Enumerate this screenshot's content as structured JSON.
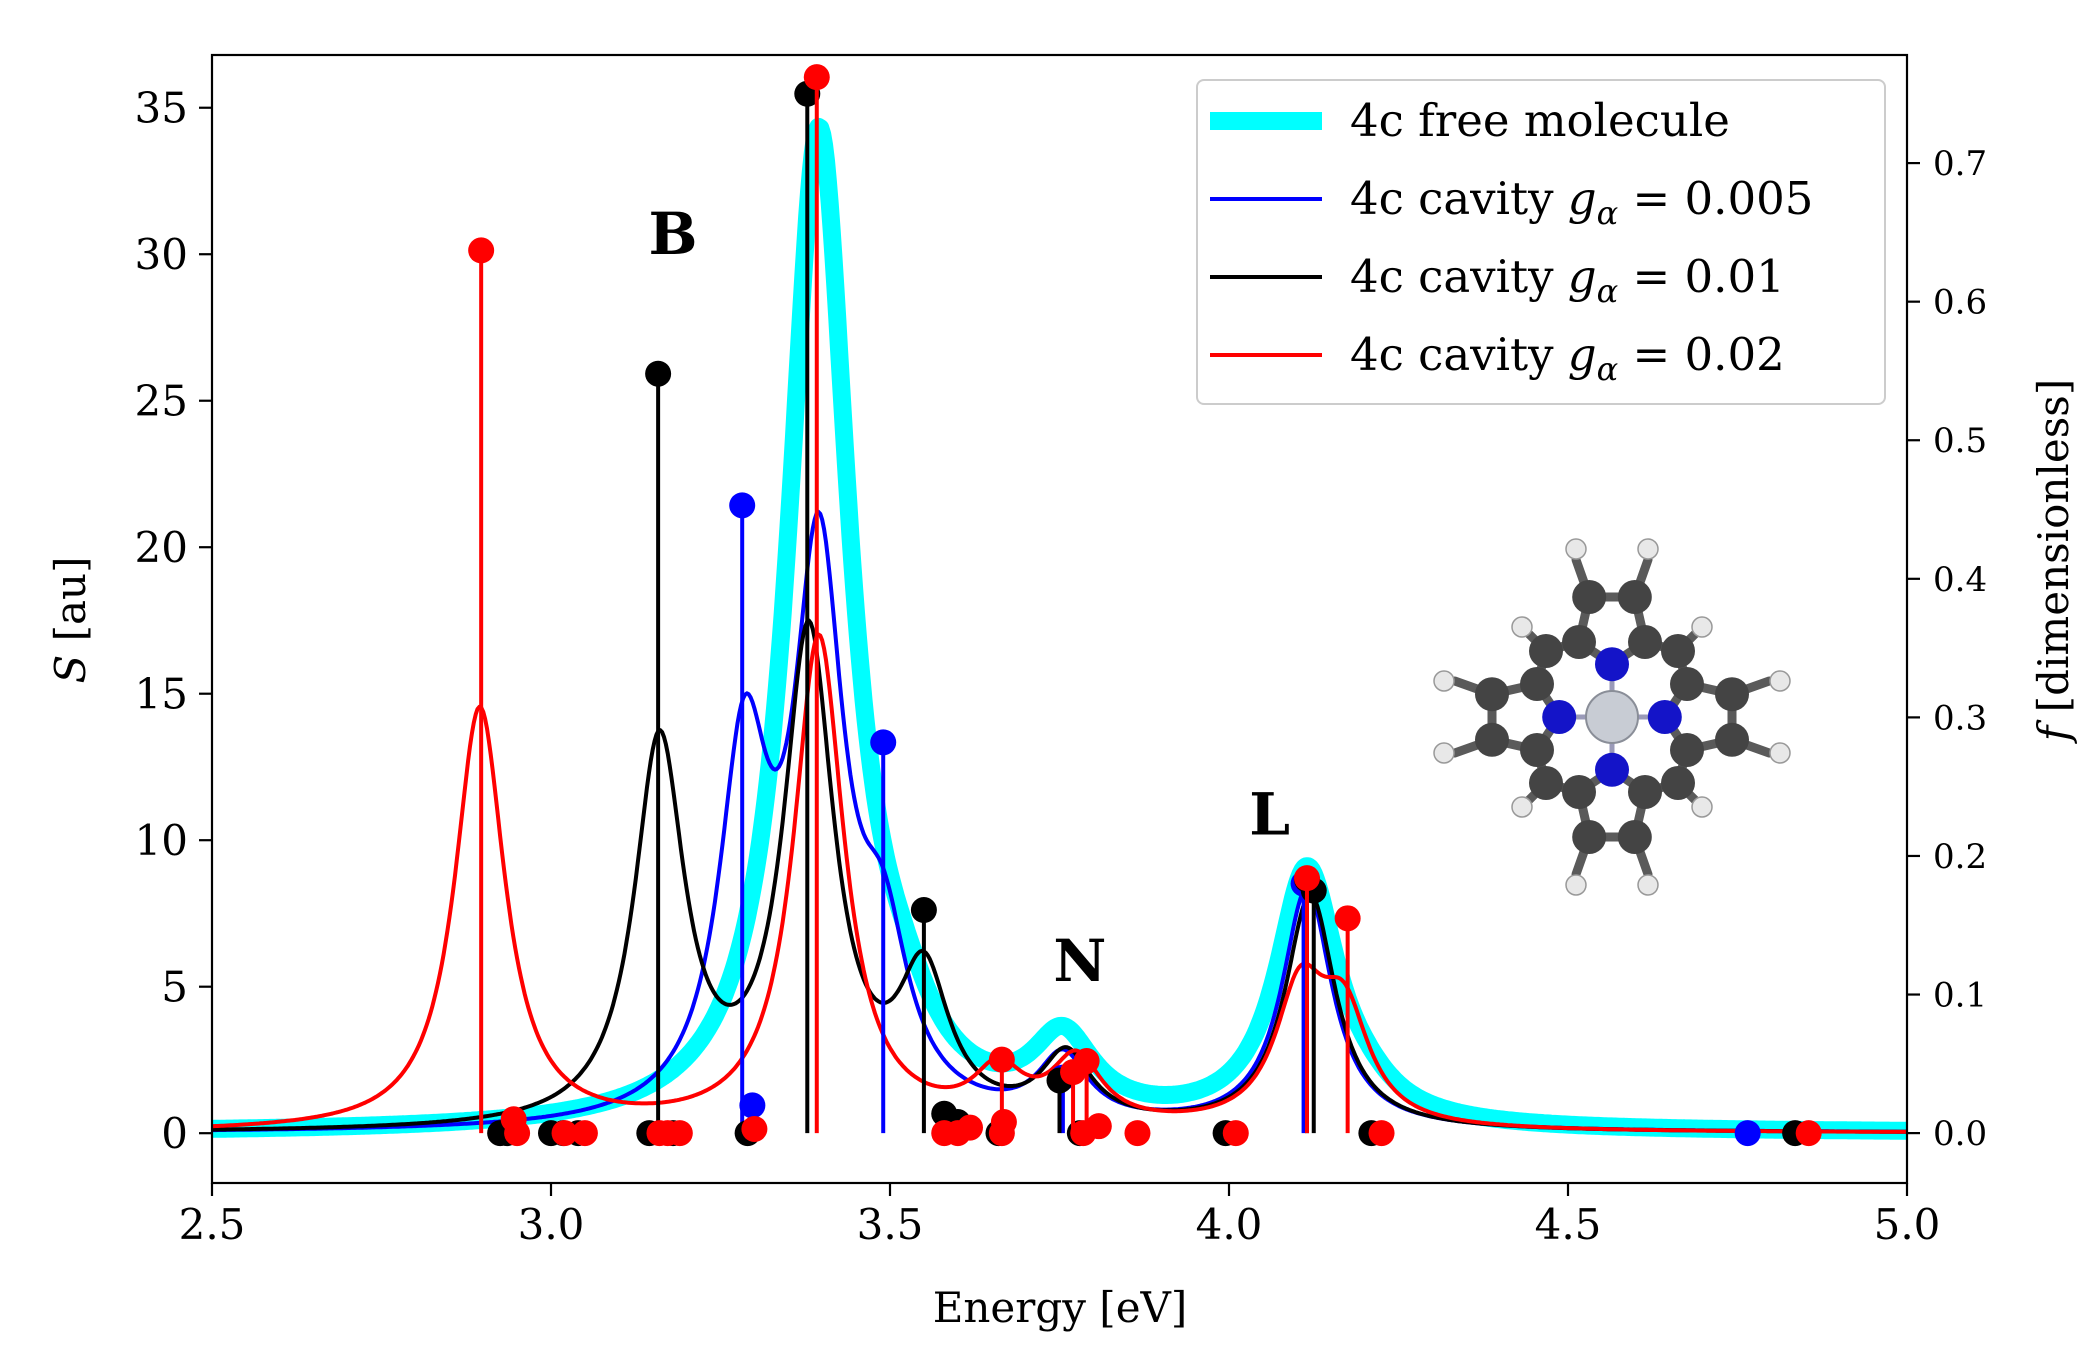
{
  "chart_data": {
    "type": "line",
    "xlabel": "Energy [eV]",
    "ylabel_left": "S [au]",
    "ylabel_right": "f [dimensionless]",
    "xlim": [
      2.5,
      5.0
    ],
    "ylim_left": [
      -1.7,
      36.8
    ],
    "ylim_right": [
      -0.036,
      0.778
    ],
    "x_ticks": [
      2.5,
      3.0,
      3.5,
      4.0,
      4.5,
      5.0
    ],
    "x_tick_labels": [
      "2.5",
      "3.0",
      "3.5",
      "4.0",
      "4.5",
      "5.0"
    ],
    "y_ticks_left": [
      0,
      5,
      10,
      15,
      20,
      25,
      30,
      35
    ],
    "y_tick_labels_left": [
      "0",
      "5",
      "10",
      "15",
      "20",
      "25",
      "30",
      "35"
    ],
    "y_ticks_right": [
      0.0,
      0.1,
      0.2,
      0.3,
      0.4,
      0.5,
      0.6,
      0.7
    ],
    "y_tick_labels_right": [
      "0.0",
      "0.1",
      "0.2",
      "0.3",
      "0.4",
      "0.5",
      "0.6",
      "0.7"
    ],
    "legend_position": "top-right",
    "peak_labels": [
      {
        "text": "B",
        "x": 3.18,
        "y": 30.0
      },
      {
        "text": "N",
        "x": 3.78,
        "y": 5.2
      },
      {
        "text": "L",
        "x": 4.06,
        "y": 10.2
      }
    ],
    "series": [
      {
        "name": "4c free molecule",
        "legend_label": "4c free molecule",
        "color": "#00FFFF",
        "style": "thick",
        "gamma": 0.055,
        "baseline": 0.0,
        "peaks": [
          {
            "x": 3.395,
            "y": 34.0
          },
          {
            "x": 3.52,
            "y": 1.5
          },
          {
            "x": 3.755,
            "y": 2.6
          },
          {
            "x": 4.115,
            "y": 8.7
          },
          {
            "x": 4.2,
            "y": 0.5
          }
        ],
        "sticks": []
      },
      {
        "name": "4c cavity g=0.005",
        "legend_label": "4c cavity ",
        "legend_g": "= 0.005",
        "color": "#0000FF",
        "style": "thin",
        "gamma": 0.045,
        "baseline": 0.0,
        "peaks": [
          {
            "x": 3.285,
            "y": 12.0
          },
          {
            "x": 3.395,
            "y": 18.5
          },
          {
            "x": 3.49,
            "y": 5.0
          },
          {
            "x": 3.755,
            "y": 2.2
          },
          {
            "x": 4.115,
            "y": 8.2
          }
        ],
        "sticks": [
          {
            "x": 3.282,
            "f": 0.453
          },
          {
            "x": 3.297,
            "f": 0.02
          },
          {
            "x": 3.49,
            "f": 0.282
          },
          {
            "x": 3.755,
            "f": 0.04
          },
          {
            "x": 4.11,
            "f": 0.18
          },
          {
            "x": 4.765,
            "f": 0.0
          }
        ]
      },
      {
        "name": "4c cavity g=0.01",
        "legend_label": "4c cavity ",
        "legend_g": "= 0.01",
        "color": "#000000",
        "style": "thin",
        "gamma": 0.045,
        "baseline": 0.0,
        "peaks": [
          {
            "x": 3.16,
            "y": 13.0
          },
          {
            "x": 3.38,
            "y": 16.6
          },
          {
            "x": 3.55,
            "y": 4.8
          },
          {
            "x": 3.76,
            "y": 2.3
          },
          {
            "x": 4.12,
            "y": 8.0
          }
        ],
        "sticks": [
          {
            "x": 2.925,
            "f": 0.0
          },
          {
            "x": 2.935,
            "f": 0.0
          },
          {
            "x": 3.0,
            "f": 0.0
          },
          {
            "x": 3.018,
            "f": 0.0
          },
          {
            "x": 3.04,
            "f": 0.0
          },
          {
            "x": 3.145,
            "f": 0.0
          },
          {
            "x": 3.158,
            "f": 0.548
          },
          {
            "x": 3.18,
            "f": 0.0
          },
          {
            "x": 3.29,
            "f": 0.0
          },
          {
            "x": 3.378,
            "f": 0.75
          },
          {
            "x": 3.55,
            "f": 0.161
          },
          {
            "x": 3.58,
            "f": 0.014
          },
          {
            "x": 3.6,
            "f": 0.008
          },
          {
            "x": 3.66,
            "f": 0.0
          },
          {
            "x": 3.75,
            "f": 0.038
          },
          {
            "x": 3.78,
            "f": 0.0
          },
          {
            "x": 3.995,
            "f": 0.0
          },
          {
            "x": 4.115,
            "f": 0.183
          },
          {
            "x": 4.125,
            "f": 0.175
          },
          {
            "x": 4.21,
            "f": 0.0
          },
          {
            "x": 4.835,
            "f": 0.0
          }
        ]
      },
      {
        "name": "4c cavity g=0.02",
        "legend_label": "4c cavity ",
        "legend_g": "= 0.02",
        "color": "#FF0000",
        "style": "thin",
        "gamma": 0.045,
        "baseline": 0.0,
        "peaks": [
          {
            "x": 2.895,
            "y": 14.4
          },
          {
            "x": 3.395,
            "y": 16.8
          },
          {
            "x": 3.66,
            "y": 1.7
          },
          {
            "x": 3.775,
            "y": 2.2
          },
          {
            "x": 4.105,
            "y": 4.4
          },
          {
            "x": 4.17,
            "y": 3.6
          }
        ],
        "sticks": [
          {
            "x": 2.897,
            "f": 0.637
          },
          {
            "x": 2.945,
            "f": 0.01
          },
          {
            "x": 2.95,
            "f": 0.0
          },
          {
            "x": 3.02,
            "f": 0.0
          },
          {
            "x": 3.05,
            "f": 0.0
          },
          {
            "x": 3.16,
            "f": 0.0
          },
          {
            "x": 3.172,
            "f": 0.0
          },
          {
            "x": 3.19,
            "f": 0.0
          },
          {
            "x": 3.3,
            "f": 0.003
          },
          {
            "x": 3.392,
            "f": 0.762
          },
          {
            "x": 3.58,
            "f": 0.0
          },
          {
            "x": 3.6,
            "f": 0.0
          },
          {
            "x": 3.618,
            "f": 0.004
          },
          {
            "x": 3.665,
            "f": 0.0
          },
          {
            "x": 3.665,
            "f": 0.053
          },
          {
            "x": 3.668,
            "f": 0.008
          },
          {
            "x": 3.77,
            "f": 0.044
          },
          {
            "x": 3.785,
            "f": 0.0
          },
          {
            "x": 3.79,
            "f": 0.052
          },
          {
            "x": 3.808,
            "f": 0.005
          },
          {
            "x": 3.865,
            "f": 0.0
          },
          {
            "x": 4.01,
            "f": 0.0
          },
          {
            "x": 4.115,
            "f": 0.184
          },
          {
            "x": 4.175,
            "f": 0.155
          },
          {
            "x": 4.225,
            "f": 0.0
          },
          {
            "x": 4.855,
            "f": 0.0
          }
        ]
      }
    ]
  }
}
